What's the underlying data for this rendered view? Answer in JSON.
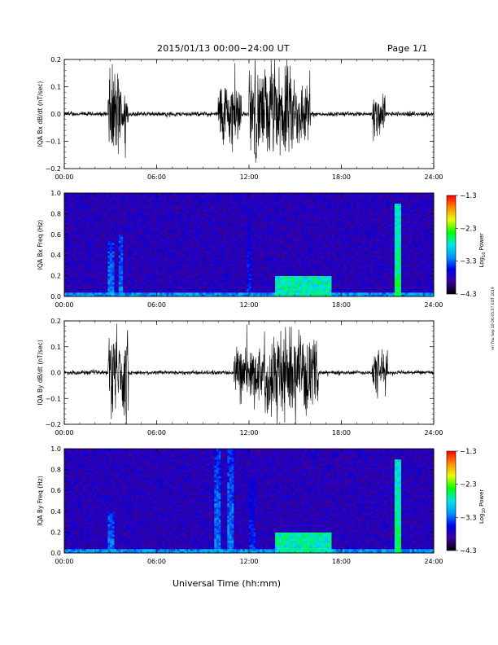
{
  "header": {
    "title": "2015/01/13  00:00−24:00 UT",
    "page": "Page 1/1"
  },
  "footer": {
    "xlabel": "Universal Time (hh:mm)",
    "stamp": "rel Thu Sep 19 06:05:57 EDT 2019"
  },
  "colorbar": {
    "label": "Log",
    "label_sub": "10",
    "label_tail": " Power",
    "ticks": [
      "−1.3",
      "−2.3",
      "−3.3",
      "−4.3"
    ],
    "colors": [
      "#ff0000",
      "#ff8c00",
      "#e8ff00",
      "#00ff00",
      "#00e6e6",
      "#0096ff",
      "#0000e6",
      "#3c00a0",
      "#000000"
    ]
  },
  "chart_data": [
    {
      "type": "line",
      "ylabel": "IQA Bx dB/dt (nT/sec)",
      "ylim": [
        -0.2,
        0.2
      ],
      "yticks": [
        "0.2",
        "0.1",
        "0.0",
        "−0.1",
        "−0.2"
      ],
      "xlim": [
        "00:00",
        "24:00"
      ],
      "xticks": [
        "00:00",
        "06:00",
        "12:00",
        "18:00",
        "24:00"
      ],
      "activity": [
        {
          "start": "02:50",
          "end": "03:40",
          "amplitude": 0.2
        },
        {
          "start": "03:40",
          "end": "04:10",
          "amplitude": 0.11
        },
        {
          "start": "10:00",
          "end": "11:30",
          "amplitude": 0.15
        },
        {
          "start": "12:00",
          "end": "15:00",
          "amplitude": 0.2
        },
        {
          "start": "15:00",
          "end": "16:00",
          "amplitude": 0.15
        },
        {
          "start": "20:00",
          "end": "20:50",
          "amplitude": 0.1
        }
      ],
      "baseline_amplitude": 0.01
    },
    {
      "type": "heatmap",
      "ylabel": "IQA Bx Freq (Hz)",
      "ylim": [
        0.0,
        1.0
      ],
      "yticks": [
        "1.0",
        "0.8",
        "0.6",
        "0.4",
        "0.2",
        "0.0"
      ],
      "xlim": [
        "00:00",
        "24:00"
      ],
      "xticks": [
        "00:00",
        "06:00",
        "12:00",
        "18:00",
        "24:00"
      ],
      "zlim": [
        -4.3,
        -1.3
      ],
      "zlabel": "Log10 Power",
      "features": [
        {
          "time": "03:00",
          "freq_max": 0.55,
          "log_power": -3.0
        },
        {
          "time": "03:40",
          "freq_max": 0.6,
          "log_power": -3.0
        },
        {
          "time": "12:00",
          "freq_max": 0.7,
          "log_power": -3.3
        },
        {
          "time": "15:30",
          "freq_max": 0.2,
          "log_power": -2.5
        },
        {
          "time": "21:40",
          "freq_max": 0.9,
          "log_power": -2.3
        }
      ]
    },
    {
      "type": "line",
      "ylabel": "IQA By dB/dt (nT/sec)",
      "ylim": [
        -0.2,
        0.2
      ],
      "yticks": [
        "0.2",
        "0.1",
        "0.0",
        "−0.1",
        "−0.2"
      ],
      "xlim": [
        "00:00",
        "24:00"
      ],
      "xticks": [
        "00:00",
        "06:00",
        "12:00",
        "18:00",
        "24:00"
      ],
      "activity": [
        {
          "start": "02:50",
          "end": "04:10",
          "amplitude": 0.2
        },
        {
          "start": "11:00",
          "end": "13:00",
          "amplitude": 0.12
        },
        {
          "start": "13:00",
          "end": "15:00",
          "amplitude": 0.2
        },
        {
          "start": "15:00",
          "end": "16:30",
          "amplitude": 0.15
        },
        {
          "start": "20:00",
          "end": "21:00",
          "amplitude": 0.1
        }
      ],
      "baseline_amplitude": 0.01
    },
    {
      "type": "heatmap",
      "ylabel": "IQA By Freq (Hz)",
      "ylim": [
        0.0,
        1.0
      ],
      "yticks": [
        "1.0",
        "0.8",
        "0.6",
        "0.4",
        "0.2",
        "0.0"
      ],
      "xlim": [
        "00:00",
        "24:00"
      ],
      "xticks": [
        "00:00",
        "06:00",
        "12:00",
        "18:00",
        "24:00"
      ],
      "zlim": [
        -4.3,
        -1.3
      ],
      "zlabel": "Log10 Power",
      "features": [
        {
          "time": "03:00",
          "freq_max": 0.4,
          "log_power": -3.0
        },
        {
          "time": "10:00",
          "freq_max": 1.0,
          "log_power": -3.0
        },
        {
          "time": "10:45",
          "freq_max": 1.0,
          "log_power": -3.0
        },
        {
          "time": "12:10",
          "freq_max": 0.7,
          "log_power": -3.3
        },
        {
          "time": "15:30",
          "freq_max": 0.2,
          "log_power": -2.5
        },
        {
          "time": "21:40",
          "freq_max": 0.9,
          "log_power": -2.3
        }
      ]
    }
  ]
}
